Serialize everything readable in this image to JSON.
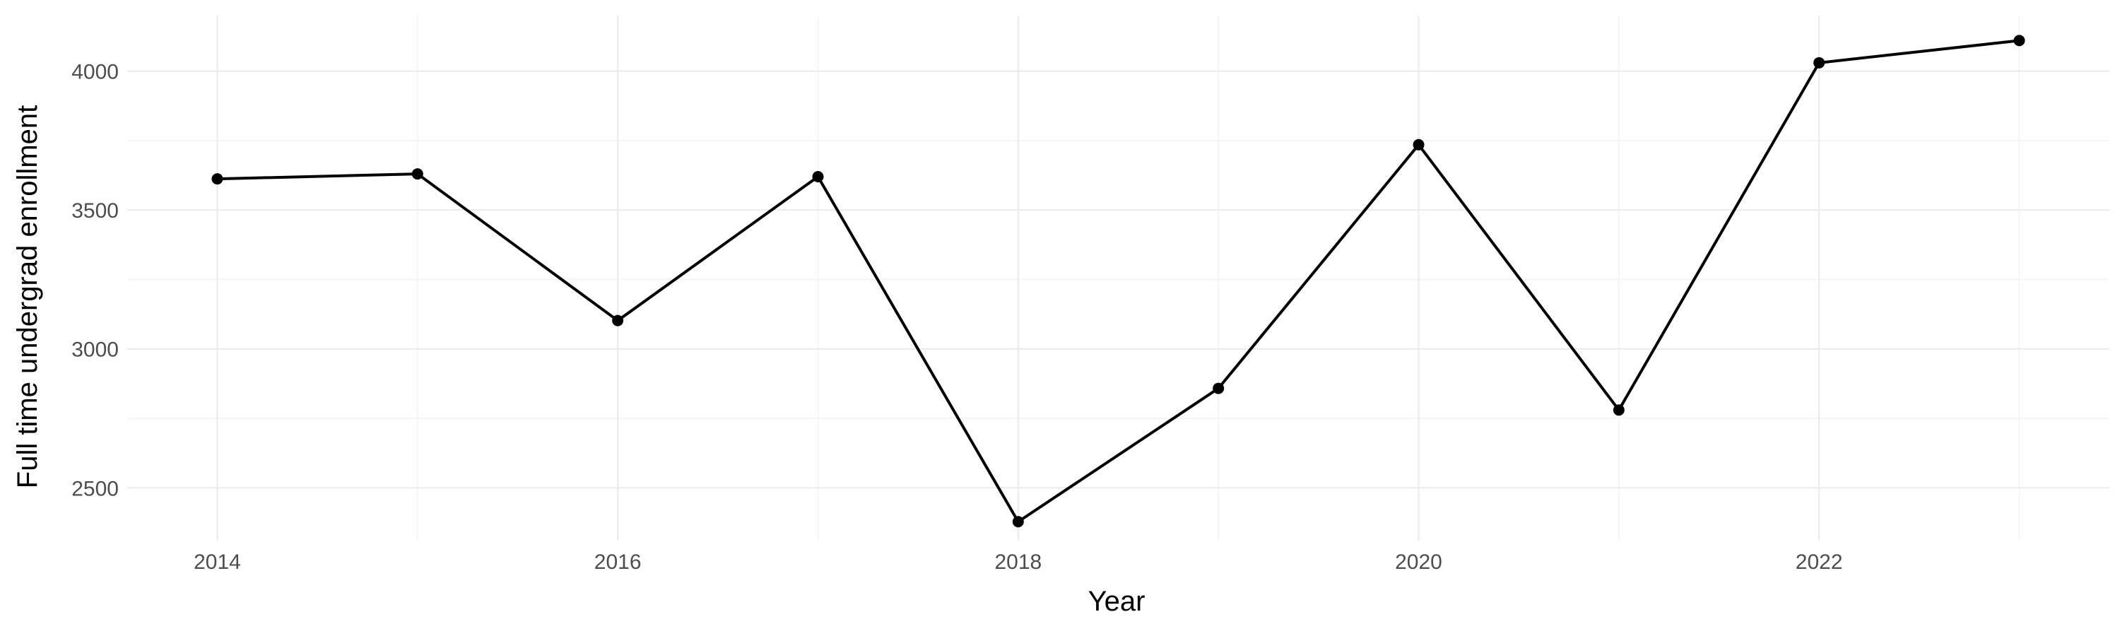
{
  "chart_data": {
    "type": "line",
    "title": "",
    "xlabel": "Year",
    "ylabel": "Full time undergrad enrollment",
    "x": [
      2014,
      2015,
      2016,
      2017,
      2018,
      2019,
      2020,
      2021,
      2022,
      2023
    ],
    "series": [
      {
        "values": [
          3612,
          3630,
          3102,
          3620,
          2378,
          2858,
          3735,
          2780,
          4030,
          4110
        ]
      }
    ],
    "x_ticks": [
      "2014",
      "2016",
      "2018",
      "2020",
      "2022"
    ],
    "y_ticks": [
      "2500",
      "3000",
      "3500",
      "4000"
    ],
    "xlim": [
      2013.55,
      2023.45
    ],
    "ylim": [
      2310,
      4200
    ],
    "grid": true,
    "legend": "none",
    "colors": {
      "line": "#000000",
      "point": "#000000",
      "grid_major": "#ebebeb",
      "grid_minor": "#f3f3f3"
    }
  }
}
